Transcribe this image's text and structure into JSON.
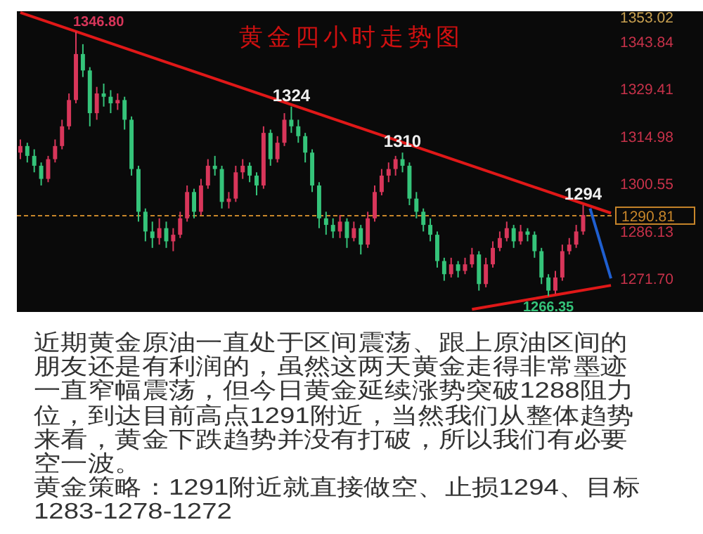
{
  "chart_data": {
    "type": "candlestick",
    "title": "黄金四小时走势图",
    "categories": [
      null,
      null,
      null,
      null,
      null,
      null,
      null,
      null,
      null,
      null,
      null,
      null,
      null,
      null,
      null,
      null,
      null,
      null,
      null,
      null,
      null,
      null,
      null,
      null,
      null,
      null,
      null,
      null,
      null,
      null,
      null,
      null,
      null,
      null,
      null,
      null,
      null,
      null,
      null,
      null,
      null,
      null,
      null,
      null,
      null,
      null,
      null,
      null,
      null,
      null,
      null,
      null,
      null,
      null,
      null,
      null,
      null,
      null,
      null,
      null,
      null,
      null,
      null,
      null,
      null,
      null,
      null,
      null,
      null,
      null,
      null,
      null,
      null,
      null,
      null,
      null,
      null,
      null,
      null,
      null,
      null,
      null,
      null,
      null,
      null,
      null
    ],
    "ohlc": [
      [
        1310,
        1314,
        1308,
        1312
      ],
      [
        1312,
        1313,
        1307,
        1309
      ],
      [
        1309,
        1311,
        1304,
        1306
      ],
      [
        1306,
        1307,
        1300,
        1302
      ],
      [
        1302,
        1309,
        1301,
        1308
      ],
      [
        1308,
        1314,
        1307,
        1312
      ],
      [
        1312,
        1320,
        1311,
        1318
      ],
      [
        1318,
        1328,
        1317,
        1326
      ],
      [
        1326,
        1346.8,
        1325,
        1340
      ],
      [
        1340,
        1343,
        1333,
        1335
      ],
      [
        1335,
        1336,
        1318,
        1322
      ],
      [
        1322,
        1330,
        1320,
        1328
      ],
      [
        1328,
        1331,
        1324,
        1327
      ],
      [
        1327,
        1329,
        1322,
        1325
      ],
      [
        1325,
        1328,
        1323,
        1326
      ],
      [
        1326,
        1327,
        1317,
        1320
      ],
      [
        1320,
        1321,
        1303,
        1305
      ],
      [
        1305,
        1306,
        1289,
        1292
      ],
      [
        1292,
        1293,
        1283,
        1286
      ],
      [
        1286,
        1289,
        1281,
        1284
      ],
      [
        1284,
        1290,
        1282,
        1287
      ],
      [
        1287,
        1289,
        1281,
        1283
      ],
      [
        1283,
        1287,
        1280,
        1285
      ],
      [
        1285,
        1292,
        1284,
        1290
      ],
      [
        1290,
        1300,
        1289,
        1298
      ],
      [
        1298,
        1299,
        1290,
        1292
      ],
      [
        1292,
        1302,
        1291,
        1300
      ],
      [
        1300,
        1308,
        1299,
        1306
      ],
      [
        1306,
        1309,
        1303,
        1305
      ],
      [
        1305,
        1306,
        1293,
        1295
      ],
      [
        1295,
        1298,
        1293,
        1296
      ],
      [
        1296,
        1306,
        1295,
        1304
      ],
      [
        1304,
        1308,
        1302,
        1306
      ],
      [
        1306,
        1307,
        1301,
        1303
      ],
      [
        1303,
        1304,
        1297,
        1300
      ],
      [
        1300,
        1318,
        1299,
        1316
      ],
      [
        1316,
        1317,
        1306,
        1308
      ],
      [
        1308,
        1315,
        1307,
        1313
      ],
      [
        1313,
        1322,
        1312,
        1320
      ],
      [
        1320,
        1324,
        1316,
        1318
      ],
      [
        1318,
        1320,
        1313,
        1315
      ],
      [
        1315,
        1316,
        1307,
        1310
      ],
      [
        1310,
        1311,
        1298,
        1300
      ],
      [
        1300,
        1301,
        1287,
        1290
      ],
      [
        1290,
        1292,
        1285,
        1288
      ],
      [
        1288,
        1290,
        1284,
        1286
      ],
      [
        1286,
        1291,
        1284,
        1289
      ],
      [
        1289,
        1290,
        1281,
        1284
      ],
      [
        1284,
        1289,
        1283,
        1287
      ],
      [
        1287,
        1288,
        1279,
        1282
      ],
      [
        1282,
        1292,
        1281,
        1290
      ],
      [
        1290,
        1300,
        1289,
        1298
      ],
      [
        1298,
        1305,
        1297,
        1303
      ],
      [
        1303,
        1307,
        1301,
        1305
      ],
      [
        1305,
        1309,
        1303,
        1308
      ],
      [
        1308,
        1310,
        1304,
        1306
      ],
      [
        1306,
        1307,
        1294,
        1296
      ],
      [
        1296,
        1298,
        1290,
        1292
      ],
      [
        1292,
        1293,
        1286,
        1288
      ],
      [
        1288,
        1290,
        1283,
        1285
      ],
      [
        1285,
        1286,
        1275,
        1277
      ],
      [
        1277,
        1278,
        1271,
        1273
      ],
      [
        1273,
        1278,
        1272,
        1276
      ],
      [
        1276,
        1277,
        1272,
        1274
      ],
      [
        1274,
        1278,
        1273,
        1276
      ],
      [
        1276,
        1281,
        1275,
        1279
      ],
      [
        1279,
        1280,
        1268,
        1270
      ],
      [
        1270,
        1278,
        1269,
        1276
      ],
      [
        1276,
        1283,
        1275,
        1281
      ],
      [
        1281,
        1286,
        1280,
        1284
      ],
      [
        1284,
        1289,
        1283,
        1287
      ],
      [
        1287,
        1288,
        1281,
        1283
      ],
      [
        1283,
        1288,
        1282,
        1286
      ],
      [
        1286,
        1287,
        1283,
        1285
      ],
      [
        1285,
        1286,
        1278,
        1280
      ],
      [
        1280,
        1281,
        1270,
        1272
      ],
      [
        1272,
        1273,
        1266.35,
        1268
      ],
      [
        1268,
        1274,
        1267,
        1272
      ],
      [
        1272,
        1282,
        1271,
        1280
      ],
      [
        1280,
        1284,
        1279,
        1282
      ],
      [
        1282,
        1288,
        1281,
        1286
      ],
      [
        1286,
        1294,
        1285,
        1291
      ],
      null,
      null,
      null,
      null
    ],
    "series": [
      {
        "type": "line",
        "color": "#e01818",
        "values": [
          1352.6,
          null,
          null,
          null,
          null,
          null,
          null,
          null,
          null,
          null,
          null,
          null,
          null,
          null,
          null,
          null,
          null,
          null,
          null,
          null,
          null,
          null,
          null,
          null,
          null,
          null,
          null,
          null,
          null,
          null,
          null,
          null,
          null,
          null,
          null,
          null,
          null,
          null,
          null,
          null,
          null,
          null,
          null,
          null,
          null,
          null,
          null,
          null,
          null,
          null,
          null,
          null,
          null,
          null,
          null,
          null,
          null,
          null,
          null,
          null,
          null,
          null,
          null,
          null,
          null,
          null,
          null,
          null,
          null,
          null,
          null,
          null,
          null,
          null,
          null,
          null,
          null,
          null,
          null,
          null,
          null,
          null,
          null,
          null,
          null,
          1291.6
        ]
      },
      {
        "type": "line",
        "color": "#e01818",
        "values": [
          null,
          null,
          null,
          null,
          null,
          null,
          null,
          null,
          null,
          null,
          null,
          null,
          null,
          null,
          null,
          null,
          null,
          null,
          null,
          null,
          null,
          null,
          null,
          null,
          null,
          null,
          null,
          null,
          null,
          null,
          null,
          null,
          null,
          null,
          null,
          null,
          null,
          null,
          null,
          null,
          null,
          null,
          null,
          null,
          null,
          null,
          null,
          null,
          null,
          null,
          null,
          null,
          null,
          null,
          null,
          null,
          null,
          null,
          null,
          null,
          null,
          null,
          null,
          null,
          null,
          1262.3,
          null,
          null,
          null,
          null,
          null,
          null,
          null,
          null,
          null,
          null,
          null,
          null,
          null,
          null,
          null,
          null,
          null,
          null,
          null,
          1269.6
        ]
      },
      {
        "type": "line",
        "color": "#1f5fd0",
        "values": [
          null,
          null,
          null,
          null,
          null,
          null,
          null,
          null,
          null,
          null,
          null,
          null,
          null,
          null,
          null,
          null,
          null,
          null,
          null,
          null,
          null,
          null,
          null,
          null,
          null,
          null,
          null,
          null,
          null,
          null,
          null,
          null,
          null,
          null,
          null,
          null,
          null,
          null,
          null,
          null,
          null,
          null,
          null,
          null,
          null,
          null,
          null,
          null,
          null,
          null,
          null,
          null,
          null,
          null,
          null,
          null,
          null,
          null,
          null,
          null,
          null,
          null,
          null,
          null,
          null,
          null,
          null,
          null,
          null,
          null,
          null,
          null,
          null,
          null,
          null,
          null,
          null,
          null,
          null,
          null,
          null,
          null,
          1293.0,
          null,
          null,
          1271.7
        ]
      }
    ],
    "ylim": [
      1261.5,
      1353.02
    ],
    "yticks": [
      {
        "value": 1353.02,
        "label": "1353.02"
      },
      1343.84,
      1329.41,
      1314.98,
      1300.55,
      1286.13,
      {
        "value": 1271.7,
        "label": "1271.70"
      }
    ],
    "tick_labels": "y",
    "ref_lines": [
      {
        "axis": "y",
        "value": 1290.81,
        "label": "1290.81",
        "color": "#c8862a",
        "line_style": "dashed"
      }
    ],
    "annotations": [
      {
        "text": "1346.80",
        "y": 1346.8
      },
      {
        "text": "1324",
        "y": 1324
      },
      {
        "text": "1310",
        "y": 1310
      },
      {
        "text": "1294",
        "y": 1294
      },
      {
        "text": "1266.35",
        "y": 1266.35
      },
      "近期黄金原油一直处于区间震荡、跟上原油区间的朋友还是有利润的，虽然这两天黄金走得非常墨迹一直窄幅震荡，但今日黄金延续涨势突破1288阻力位，到达目前高点1291附近，当然我们从整体趋势来看，黄金下跌趋势并没有打破，所以我们有必要空一波。",
      "黄金策略：1291附近就直接做空、止损1294、目标1283-1278-1272"
    ]
  }
}
